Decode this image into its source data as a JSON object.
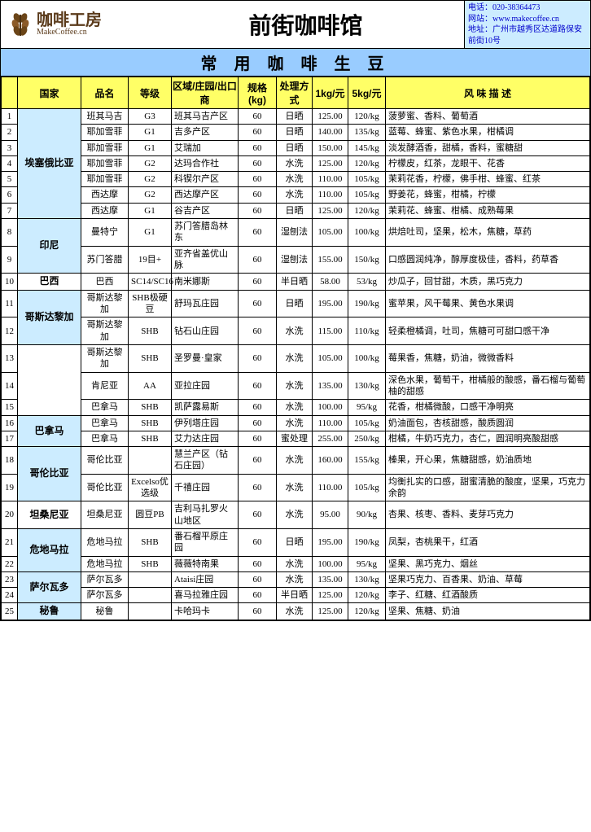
{
  "header": {
    "logo_cn": "咖啡工房",
    "logo_en": "MakeCoffee.cn",
    "title": "前街咖啡馆",
    "contact_phone": "电话：020-38364473",
    "contact_web": "网站：www.makecoffee.cn",
    "contact_addr": "地址：广州市越秀区达道路保安前街10号"
  },
  "section_title": "常 用 咖 啡 生 豆",
  "columns": {
    "idx": "",
    "country": "国家",
    "variety": "品名",
    "grade": "等级",
    "region": "区域/庄园/出口商",
    "spec": "规格(kg)",
    "process": "处理方式",
    "price1": "1kg/元",
    "price5": "5kg/元",
    "flavor": "风 味 描 述"
  },
  "groups": [
    {
      "country": "埃塞俄比亚",
      "blue": true,
      "rows": [
        {
          "idx": "1",
          "variety": "班其马吉",
          "grade": "G3",
          "region": "班其马吉产区",
          "spec": "60",
          "process": "日晒",
          "p1": "125.00",
          "p5": "120/kg",
          "flavor": "菠萝蜜、香料、葡萄酒"
        },
        {
          "idx": "2",
          "variety": "耶加雪菲",
          "grade": "G1",
          "region": "吉多产区",
          "spec": "60",
          "process": "日晒",
          "p1": "140.00",
          "p5": "135/kg",
          "flavor": "蓝莓、蜂蜜、紫色水果，柑橘调"
        },
        {
          "idx": "3",
          "variety": "耶加雪菲",
          "grade": "G1",
          "region": "艾瑞加",
          "spec": "60",
          "process": "日晒",
          "p1": "150.00",
          "p5": "145/kg",
          "flavor": "淡发酵酒香，甜橘，香料，蜜糖甜"
        },
        {
          "idx": "4",
          "variety": "耶加雪菲",
          "grade": "G2",
          "region": "达玛合作社",
          "spec": "60",
          "process": "水洗",
          "p1": "125.00",
          "p5": "120/kg",
          "flavor": "柠檬皮，红茶，龙眼干、花香"
        },
        {
          "idx": "5",
          "variety": "耶加雪菲",
          "grade": "G2",
          "region": "科锲尔产区",
          "spec": "60",
          "process": "水洗",
          "p1": "110.00",
          "p5": "105/kg",
          "flavor": "茉莉花香，柠檬，佛手柑、蜂蜜、红茶"
        },
        {
          "idx": "6",
          "variety": "西达摩",
          "grade": "G2",
          "region": "西达摩产区",
          "spec": "60",
          "process": "水洗",
          "p1": "110.00",
          "p5": "105/kg",
          "flavor": "野姜花，蜂蜜，柑橘，柠檬"
        },
        {
          "idx": "7",
          "variety": "西达摩",
          "grade": "G1",
          "region": "谷吉产区",
          "spec": "60",
          "process": "日晒",
          "p1": "125.00",
          "p5": "120/kg",
          "flavor": "茉莉花、蜂蜜、柑橘、成熟莓果"
        }
      ]
    },
    {
      "country": "印尼",
      "blue": true,
      "rows": [
        {
          "idx": "8",
          "variety": "曼特宁",
          "grade": "G1",
          "region": "苏门答腊岛林东",
          "spec": "60",
          "process": "湿刨法",
          "p1": "105.00",
          "p5": "100/kg",
          "flavor": "烘焙吐司，坚果，松木，焦糖，草药"
        },
        {
          "idx": "9",
          "variety": "苏门答腊",
          "grade": "19目+",
          "region": "亚齐省盖优山脉",
          "spec": "60",
          "process": "湿刨法",
          "p1": "155.00",
          "p5": "150/kg",
          "flavor": "口感圆润纯净，醇厚度极佳，香料，药草香"
        }
      ]
    },
    {
      "country": "巴西",
      "blue": false,
      "rows": [
        {
          "idx": "10",
          "variety": "巴西",
          "grade": "SC14/SC16",
          "region": "南米娜斯",
          "spec": "60",
          "process": "半日晒",
          "p1": "58.00",
          "p5": "53/kg",
          "flavor": "炒瓜子，回甘甜，木质，黑巧克力"
        }
      ]
    },
    {
      "country": "哥斯达黎加",
      "blue": true,
      "rows": [
        {
          "idx": "11",
          "variety": "哥斯达黎加",
          "grade": "SHB极硬豆",
          "region": "舒玛瓦庄园",
          "spec": "60",
          "process": "日晒",
          "p1": "195.00",
          "p5": "190/kg",
          "flavor": "蜜苹果，风干莓果、黄色水果调"
        },
        {
          "idx": "12",
          "variety": "哥斯达黎加",
          "grade": "SHB",
          "region": "钻石山庄园",
          "spec": "60",
          "process": "水洗",
          "p1": "115.00",
          "p5": "110/kg",
          "flavor": "轻柔橙橘调，吐司，焦糖可可甜口感干净"
        }
      ]
    },
    {
      "country": "",
      "blue": false,
      "no_country_cell": false,
      "rows": [
        {
          "idx": "13",
          "variety": "哥斯达黎加",
          "grade": "SHB",
          "region": "圣罗曼·皇家",
          "spec": "60",
          "process": "水洗",
          "p1": "105.00",
          "p5": "100/kg",
          "flavor": "莓果香，焦糖，奶油，微微香料"
        },
        {
          "idx": "14",
          "variety": "肯尼亚",
          "grade": "AA",
          "region": "亚拉庄园",
          "spec": "60",
          "process": "水洗",
          "p1": "135.00",
          "p5": "130/kg",
          "flavor": "深色水果，葡萄干，柑橘般的酸感，番石榴与葡萄柚的甜感"
        },
        {
          "idx": "15",
          "variety": "巴拿马",
          "grade": "SHB",
          "region": "凯萨露易斯",
          "spec": "60",
          "process": "水洗",
          "p1": "100.00",
          "p5": "95/kg",
          "flavor": "花香，柑橘微酸，口感干净明亮"
        }
      ]
    },
    {
      "country": "巴拿马",
      "blue": true,
      "rows": [
        {
          "idx": "16",
          "variety": "巴拿马",
          "grade": "SHB",
          "region": "伊列塔庄园",
          "spec": "60",
          "process": "水洗",
          "p1": "110.00",
          "p5": "105/kg",
          "flavor": "奶油面包，杏核甜感，酸质圆润"
        },
        {
          "idx": "17",
          "variety": "巴拿马",
          "grade": "SHB",
          "region": "艾力达庄园",
          "spec": "60",
          "process": "蜜处理",
          "p1": "255.00",
          "p5": "250/kg",
          "flavor": "柑橘，牛奶巧克力，杏仁，圆润明亮酸甜感"
        }
      ]
    },
    {
      "country": "哥伦比亚",
      "blue": true,
      "rows": [
        {
          "idx": "18",
          "variety": "哥伦比亚",
          "grade": "",
          "region": "慧兰产区（钻石庄园）",
          "spec": "60",
          "process": "水洗",
          "p1": "160.00",
          "p5": "155/kg",
          "flavor": "榛果，开心果，焦糖甜感，奶油质地"
        },
        {
          "idx": "19",
          "variety": "哥伦比亚",
          "grade": "Excelso优选级",
          "region": "千禧庄园",
          "spec": "60",
          "process": "水洗",
          "p1": "110.00",
          "p5": "105/kg",
          "flavor": "均衡扎实的口感，甜蜜清脆的酸度，坚果，巧克力余韵"
        }
      ]
    },
    {
      "country": "坦桑尼亚",
      "blue": false,
      "rows": [
        {
          "idx": "20",
          "variety": "坦桑尼亚",
          "grade": "圆豆PB",
          "region": "吉利马扎罗火山地区",
          "spec": "60",
          "process": "水洗",
          "p1": "95.00",
          "p5": "90/kg",
          "flavor": "杏果、核枣、香料、麦芽巧克力"
        }
      ]
    },
    {
      "country": "危地马拉",
      "blue": true,
      "rows": [
        {
          "idx": "21",
          "variety": "危地马拉",
          "grade": "SHB",
          "region": "番石榴平原庄园",
          "spec": "60",
          "process": "日晒",
          "p1": "195.00",
          "p5": "190/kg",
          "flavor": "凤梨，杏桃果干，红酒"
        },
        {
          "idx": "22",
          "variety": "危地马拉",
          "grade": "SHB",
          "region": "薇薇特南果",
          "spec": "60",
          "process": "水洗",
          "p1": "100.00",
          "p5": "95/kg",
          "flavor": "坚果、黑巧克力、烟丝"
        }
      ]
    },
    {
      "country": "萨尔瓦多",
      "blue": true,
      "rows": [
        {
          "idx": "23",
          "variety": "萨尔瓦多",
          "grade": "",
          "region": "Ataisi庄园",
          "spec": "60",
          "process": "水洗",
          "p1": "135.00",
          "p5": "130/kg",
          "flavor": "坚果巧克力、百香果、奶油、草莓"
        },
        {
          "idx": "24",
          "variety": "萨尔瓦多",
          "grade": "",
          "region": "喜马拉雅庄园",
          "spec": "60",
          "process": "半日晒",
          "p1": "125.00",
          "p5": "120/kg",
          "flavor": "李子、红糖、红酒酸质"
        }
      ]
    },
    {
      "country": "秘鲁",
      "blue": true,
      "rows": [
        {
          "idx": "25",
          "variety": "秘鲁",
          "grade": "",
          "region": "卡哈玛卡",
          "spec": "60",
          "process": "水洗",
          "p1": "125.00",
          "p5": "120/kg",
          "flavor": "坚果、焦糖、奶油"
        }
      ]
    }
  ]
}
